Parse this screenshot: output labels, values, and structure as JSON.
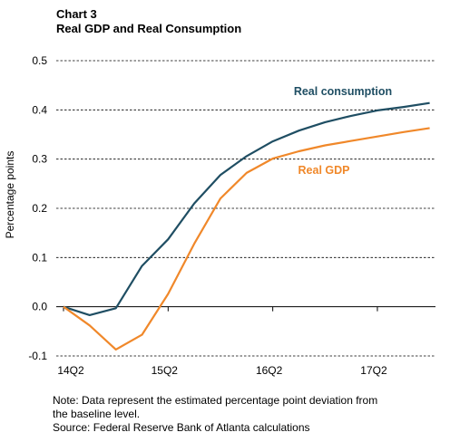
{
  "header": {
    "chart_number": "Chart 3",
    "title": "Real GDP and Real Consumption"
  },
  "footer": {
    "note_line1": "Note: Data represent the estimated percentage point deviation from",
    "note_line2": "the baseline level.",
    "source": "Source: Federal Reserve Bank of Atlanta calculations"
  },
  "colors": {
    "real_consumption": "#1f4e63",
    "real_gdp": "#f0882a",
    "grid": "#000000"
  },
  "chart_data": {
    "type": "line",
    "title": "Real GDP and Real Consumption",
    "ylabel": "Percentage points",
    "xlabel": "",
    "x": [
      "14Q2",
      "14Q3",
      "14Q4",
      "15Q1",
      "15Q2",
      "15Q3",
      "15Q4",
      "16Q1",
      "16Q2",
      "16Q3",
      "16Q4",
      "17Q1",
      "17Q2",
      "17Q3",
      "17Q4"
    ],
    "xticks": [
      "14Q2",
      "15Q2",
      "16Q2",
      "17Q2"
    ],
    "yticks": [
      -0.1,
      0.0,
      0.1,
      0.2,
      0.3,
      0.4,
      0.5
    ],
    "ytick_labels": [
      "-0.1",
      "0.0",
      "0.1",
      "0.2",
      "0.3",
      "0.4",
      "0.5"
    ],
    "ylim": [
      -0.1,
      0.5
    ],
    "grid": "horizontal dashed",
    "series": [
      {
        "name": "Real consumption",
        "color": "#1f4e63",
        "values": [
          0.0,
          -0.017,
          -0.003,
          0.083,
          0.137,
          0.21,
          0.268,
          0.306,
          0.336,
          0.358,
          0.375,
          0.388,
          0.399,
          0.406,
          0.414
        ]
      },
      {
        "name": "Real GDP",
        "color": "#f0882a",
        "values": [
          0.0,
          -0.038,
          -0.087,
          -0.057,
          0.026,
          0.128,
          0.22,
          0.272,
          0.301,
          0.316,
          0.328,
          0.337,
          0.346,
          0.355,
          0.363
        ]
      }
    ]
  }
}
